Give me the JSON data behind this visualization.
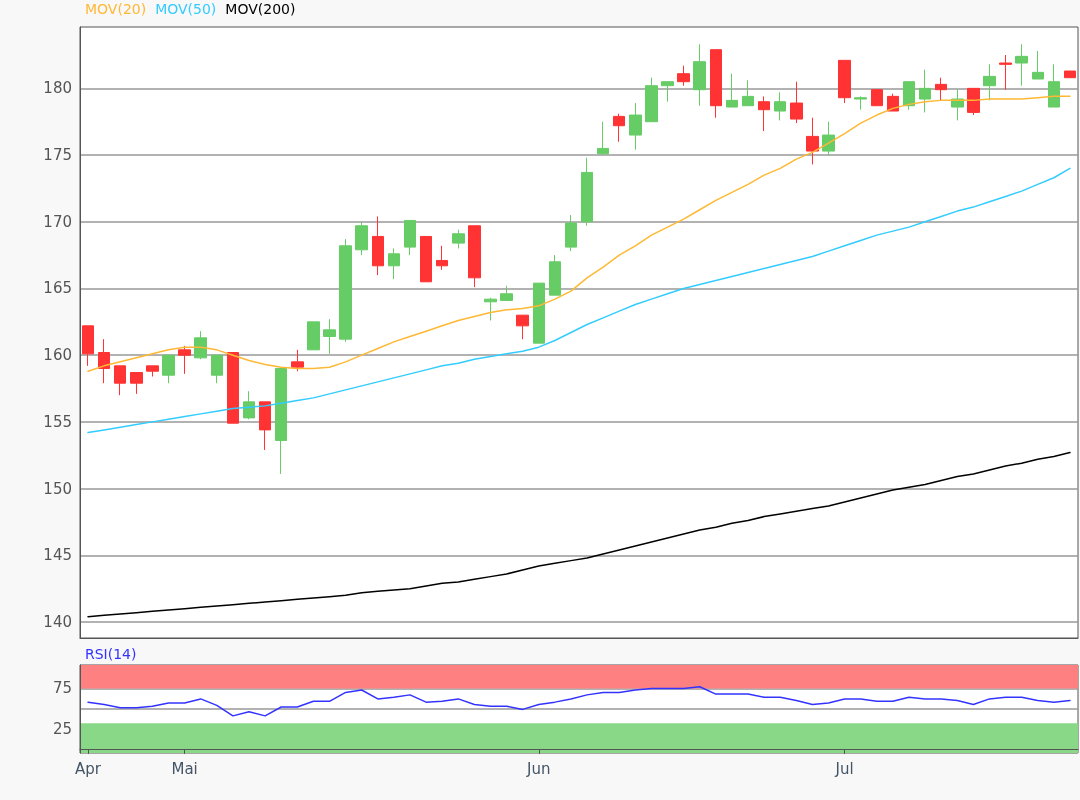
{
  "chart_data": [
    {
      "type": "candlestick",
      "categories": [
        null,
        null,
        null,
        null,
        null,
        null,
        null,
        null,
        null,
        null,
        null,
        null,
        null,
        null,
        null,
        null,
        null,
        null,
        null,
        null,
        null,
        null,
        null,
        null,
        null,
        null,
        null,
        null,
        null,
        null,
        null,
        null,
        null,
        null,
        null,
        null,
        null,
        null,
        null,
        null,
        null,
        null,
        null,
        null,
        null,
        null,
        null,
        null,
        null,
        null,
        null,
        null,
        null,
        null,
        null,
        null,
        null,
        null,
        null,
        null,
        null,
        null
      ],
      "ohlc": [
        [
          162.2,
          162.2,
          159.2,
          160.1
        ],
        [
          160.2,
          161.2,
          157.9,
          159.0
        ],
        [
          159.2,
          159.2,
          157.0,
          157.9
        ],
        [
          158.7,
          158.7,
          157.1,
          157.9
        ],
        [
          159.2,
          159.2,
          158.4,
          158.8
        ],
        [
          158.5,
          160.0,
          157.9,
          160.0
        ],
        [
          160.4,
          160.7,
          158.6,
          160.0
        ],
        [
          159.8,
          161.8,
          159.7,
          161.3
        ],
        [
          158.5,
          160.0,
          157.9,
          160.0
        ],
        [
          160.2,
          160.2,
          154.9,
          154.9
        ],
        [
          155.3,
          157.3,
          155.2,
          156.5
        ],
        [
          156.5,
          156.5,
          152.9,
          154.4
        ],
        [
          153.6,
          159.0,
          151.1,
          159.0
        ],
        [
          159.5,
          160.4,
          158.8,
          159.1
        ],
        [
          160.4,
          162.5,
          160.4,
          162.5
        ],
        [
          161.4,
          162.7,
          160.1,
          161.9
        ],
        [
          161.2,
          168.7,
          161.0,
          168.2
        ],
        [
          167.9,
          170.0,
          167.5,
          169.7
        ],
        [
          168.9,
          170.4,
          166.0,
          166.7
        ],
        [
          166.7,
          168.0,
          165.7,
          167.6
        ],
        [
          168.1,
          170.1,
          167.5,
          170.1
        ],
        [
          168.9,
          168.9,
          165.5,
          165.5
        ],
        [
          167.1,
          168.2,
          166.4,
          166.7
        ],
        [
          168.4,
          169.4,
          168.0,
          169.1
        ],
        [
          169.7,
          169.7,
          165.1,
          165.8
        ],
        [
          164.0,
          164.3,
          162.6,
          164.2
        ],
        [
          164.1,
          165.2,
          164.1,
          164.6
        ],
        [
          163.0,
          163.0,
          161.2,
          162.2
        ],
        [
          160.9,
          165.4,
          160.9,
          165.4
        ],
        [
          164.5,
          167.5,
          164.5,
          167.0
        ],
        [
          168.1,
          170.5,
          167.8,
          169.9
        ],
        [
          170.0,
          174.8,
          169.7,
          173.7
        ],
        [
          175.1,
          177.5,
          175.0,
          175.5
        ],
        [
          177.9,
          178.1,
          176.0,
          177.2
        ],
        [
          176.5,
          178.9,
          175.4,
          178.0
        ],
        [
          177.5,
          180.8,
          177.5,
          180.2
        ],
        [
          180.2,
          180.5,
          179.0,
          180.5
        ],
        [
          181.1,
          181.7,
          180.2,
          180.5
        ],
        [
          179.9,
          183.3,
          178.7,
          182.0
        ],
        [
          182.9,
          182.9,
          177.8,
          178.7
        ],
        [
          178.6,
          181.1,
          178.6,
          179.1
        ],
        [
          178.7,
          180.6,
          178.7,
          179.4
        ],
        [
          179.0,
          179.4,
          176.8,
          178.4
        ],
        [
          178.3,
          179.7,
          177.6,
          179.0
        ],
        [
          178.9,
          180.5,
          177.4,
          177.7
        ],
        [
          176.4,
          177.8,
          174.3,
          175.3
        ],
        [
          175.3,
          177.5,
          175.0,
          176.5
        ],
        [
          182.1,
          182.1,
          178.9,
          179.3
        ],
        [
          179.2,
          179.4,
          178.4,
          179.3
        ],
        [
          179.9,
          179.9,
          178.7,
          178.7
        ],
        [
          179.4,
          179.6,
          178.3,
          178.3
        ],
        [
          178.7,
          180.5,
          178.4,
          180.5
        ],
        [
          179.2,
          181.4,
          178.2,
          180.0
        ],
        [
          180.3,
          180.8,
          179.1,
          179.9
        ],
        [
          178.6,
          179.9,
          177.6,
          179.2
        ],
        [
          180.0,
          180.0,
          178.0,
          178.2
        ],
        [
          180.2,
          181.8,
          179.1,
          180.9
        ],
        [
          181.9,
          182.5,
          179.9,
          181.8
        ],
        [
          181.9,
          183.3,
          180.2,
          182.4
        ],
        [
          180.7,
          182.8,
          180.7,
          181.2
        ],
        [
          178.6,
          181.8,
          178.6,
          180.5
        ],
        [
          181.3,
          181.3,
          180.8,
          180.8
        ]
      ],
      "colors": [
        "#ff3333",
        "#ff3333",
        "#ff3333",
        "#ff3333",
        "#ff3333",
        "#66cc66",
        "#ff3333",
        "#66cc66",
        "#66cc66",
        "#ff3333",
        "#66cc66",
        "#ff3333",
        "#66cc66",
        "#ff3333",
        "#66cc66",
        "#66cc66",
        "#66cc66",
        "#66cc66",
        "#ff3333",
        "#66cc66",
        "#66cc66",
        "#ff3333",
        "#ff3333",
        "#66cc66",
        "#ff3333",
        "#66cc66",
        "#66cc66",
        "#ff3333",
        "#66cc66",
        "#66cc66",
        "#66cc66",
        "#66cc66",
        "#66cc66",
        "#ff3333",
        "#66cc66",
        "#66cc66",
        "#66cc66",
        "#ff3333",
        "#66cc66",
        "#ff3333",
        "#66cc66",
        "#66cc66",
        "#ff3333",
        "#66cc66",
        "#ff3333",
        "#ff3333",
        "#66cc66",
        "#ff3333",
        "#66cc66",
        "#ff3333",
        "#ff3333",
        "#66cc66",
        "#66cc66",
        "#ff3333",
        "#66cc66",
        "#ff3333",
        "#66cc66",
        "#ff3333",
        "#66cc66",
        "#66cc66",
        "#66cc66",
        "#ff3333"
      ],
      "series": [
        {
          "type": "line",
          "name": "MOV(20)",
          "color": "#ffb833",
          "values": [
            158.8,
            159.2,
            159.5,
            159.8,
            160.1,
            160.4,
            160.6,
            160.6,
            160.4,
            160.0,
            159.6,
            159.3,
            159.1,
            159.0,
            159.0,
            159.1,
            159.5,
            160.0,
            160.5,
            161.0,
            161.4,
            161.8,
            162.2,
            162.6,
            162.9,
            163.2,
            163.4,
            163.5,
            163.7,
            164.2,
            164.8,
            165.8,
            166.6,
            167.5,
            168.2,
            169.0,
            169.6,
            170.2,
            170.9,
            171.6,
            172.2,
            172.8,
            173.5,
            174.0,
            174.7,
            175.2,
            175.9,
            176.6,
            177.4,
            178.0,
            178.5,
            178.8,
            179.0,
            179.1,
            179.1,
            179.1,
            179.2,
            179.2,
            179.2,
            179.3,
            179.4,
            179.4
          ]
        },
        {
          "type": "line",
          "name": "MOV(50)",
          "color": "#33ccff",
          "values": [
            154.2,
            154.4,
            154.6,
            154.8,
            155.0,
            155.2,
            155.4,
            155.6,
            155.8,
            156.0,
            156.1,
            156.2,
            156.4,
            156.6,
            156.8,
            157.1,
            157.4,
            157.7,
            158.0,
            158.3,
            158.6,
            158.9,
            159.2,
            159.4,
            159.7,
            159.9,
            160.1,
            160.3,
            160.6,
            161.1,
            161.7,
            162.3,
            162.8,
            163.3,
            163.8,
            164.2,
            164.6,
            165.0,
            165.3,
            165.6,
            165.9,
            166.2,
            166.5,
            166.8,
            167.1,
            167.4,
            167.8,
            168.2,
            168.6,
            169.0,
            169.3,
            169.6,
            170.0,
            170.4,
            170.8,
            171.1,
            171.5,
            171.9,
            172.3,
            172.8,
            173.3,
            174.0
          ]
        },
        {
          "type": "line",
          "name": "MOV(200)",
          "color": "#000000",
          "values": [
            140.4,
            140.5,
            140.6,
            140.7,
            140.8,
            140.9,
            141.0,
            141.1,
            141.2,
            141.3,
            141.4,
            141.5,
            141.6,
            141.7,
            141.8,
            141.9,
            142.0,
            142.2,
            142.3,
            142.4,
            142.5,
            142.7,
            142.9,
            143.0,
            143.2,
            143.4,
            143.6,
            143.9,
            144.2,
            144.4,
            144.6,
            144.8,
            145.1,
            145.4,
            145.7,
            146.0,
            146.3,
            146.6,
            146.9,
            147.1,
            147.4,
            147.6,
            147.9,
            148.1,
            148.3,
            148.5,
            148.7,
            149.0,
            149.3,
            149.6,
            149.9,
            150.1,
            150.3,
            150.6,
            150.9,
            151.1,
            151.4,
            151.7,
            151.9,
            152.2,
            152.4,
            152.7
          ]
        }
      ],
      "ylim": [
        138.8,
        184.6
      ],
      "yticks": [
        140,
        145,
        150,
        155,
        160,
        165,
        170,
        175,
        180
      ],
      "grid": "y",
      "legend": "top left",
      "marker": "none",
      "tick_labels": "y"
    },
    {
      "type": "line",
      "categories": [
        "Apr",
        null,
        null,
        null,
        null,
        null,
        "Mai",
        null,
        null,
        null,
        null,
        null,
        null,
        null,
        null,
        null,
        null,
        null,
        null,
        null,
        null,
        null,
        null,
        null,
        null,
        null,
        null,
        null,
        "Jun",
        null,
        null,
        null,
        null,
        null,
        null,
        null,
        null,
        null,
        null,
        null,
        null,
        null,
        null,
        null,
        null,
        null,
        null,
        "Jul",
        null,
        null,
        null,
        null,
        null,
        null,
        null,
        null,
        null,
        null,
        null,
        null,
        null,
        null
      ],
      "series": [
        {
          "name": "RSI(14)",
          "color": "#3333ff",
          "values": [
            58,
            55,
            51,
            51,
            53,
            57,
            57,
            62,
            54,
            41,
            46,
            41,
            52,
            52,
            59,
            59,
            70,
            73,
            62,
            64,
            67,
            58,
            59,
            62,
            55,
            53,
            53,
            49,
            55,
            58,
            62,
            67,
            70,
            70,
            73,
            75,
            75,
            75,
            77,
            68,
            68,
            68,
            64,
            64,
            60,
            55,
            57,
            62,
            62,
            59,
            59,
            64,
            62,
            62,
            60,
            55,
            62,
            64,
            64,
            60,
            58,
            60
          ]
        }
      ],
      "bands": [
        {
          "axis": "y",
          "from": 75,
          "to": 104,
          "color": "#ff8080"
        },
        {
          "axis": "y",
          "from": -5,
          "to": 32,
          "color": "#88d888"
        }
      ],
      "ylim": [
        -5,
        104
      ],
      "yticks": [
        25,
        {
          "value": 50,
          "label": null
        },
        75
      ],
      "grid": "y",
      "legend": "top left",
      "marker": "none"
    }
  ]
}
